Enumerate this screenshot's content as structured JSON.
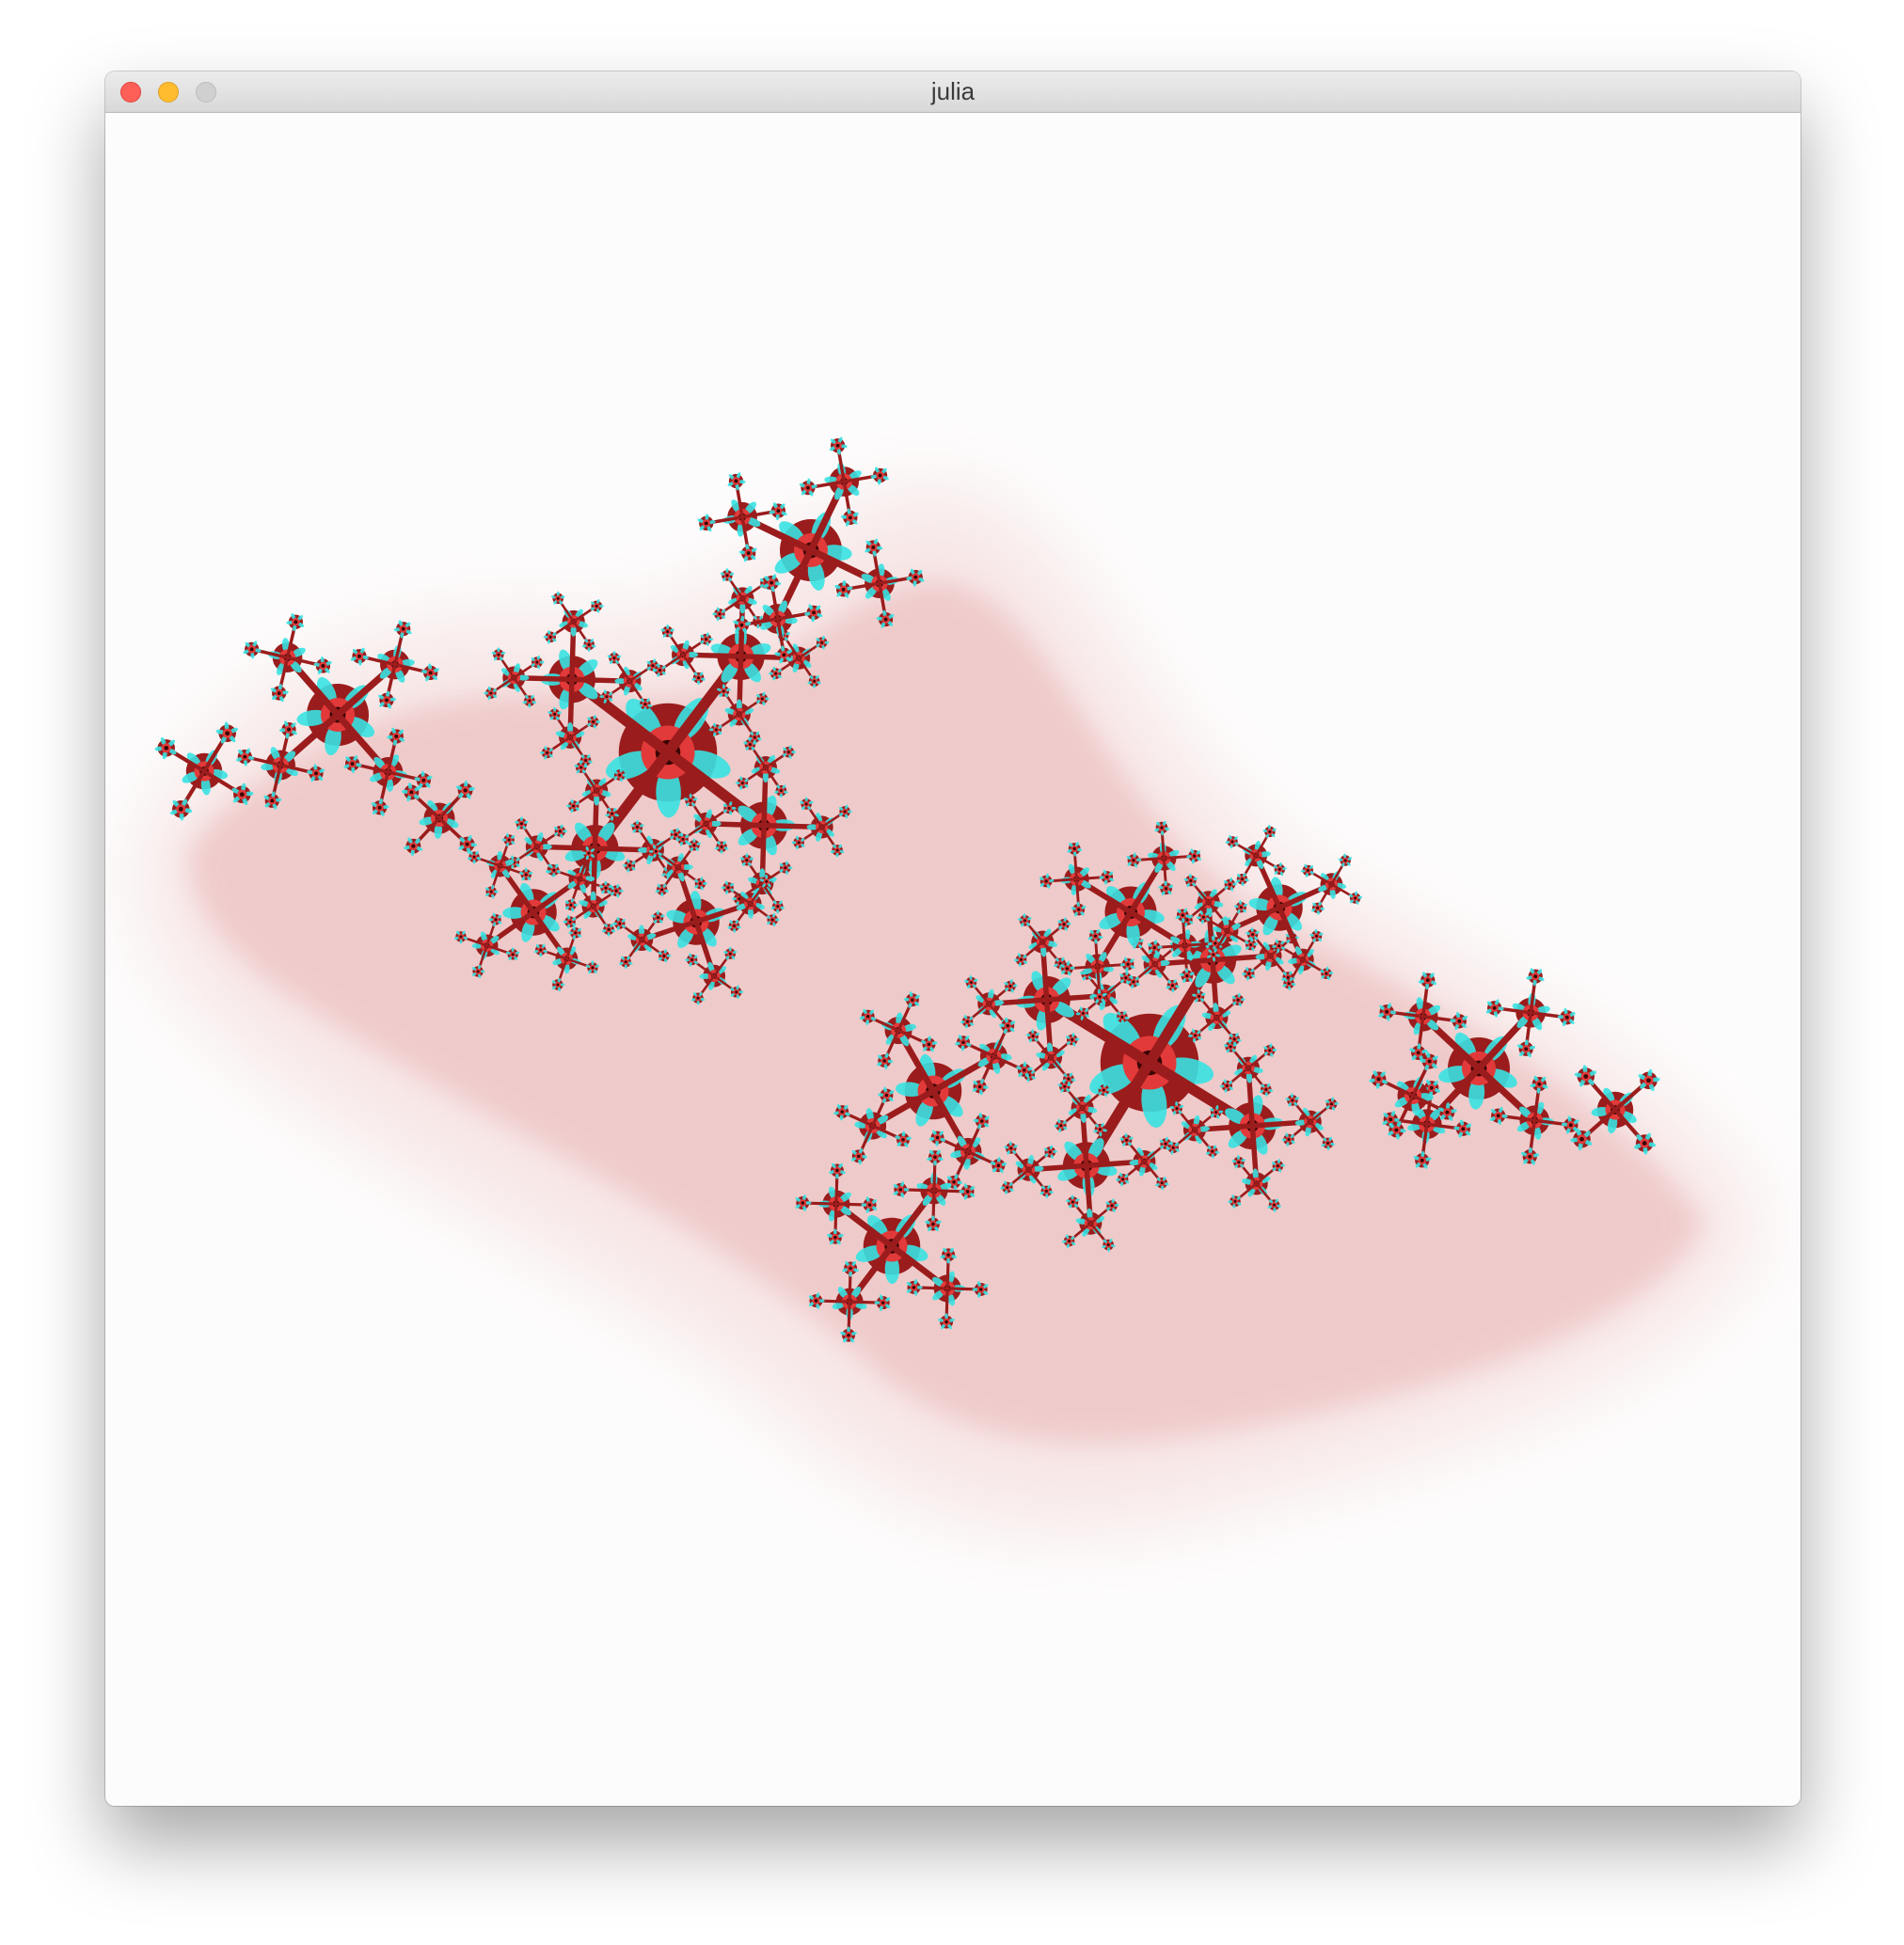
{
  "window": {
    "title": "julia",
    "controls": [
      "close-button",
      "minimize-button",
      "zoom-button"
    ]
  },
  "canvas": {
    "content": "julia-set-fractal",
    "colors": {
      "background": "#fdfcfc",
      "halo": "#f3d6d6",
      "body": "#9b1c1c",
      "core": "#3a0606",
      "highlight": "#e23a3a",
      "cyan": "#38e2e2"
    }
  }
}
